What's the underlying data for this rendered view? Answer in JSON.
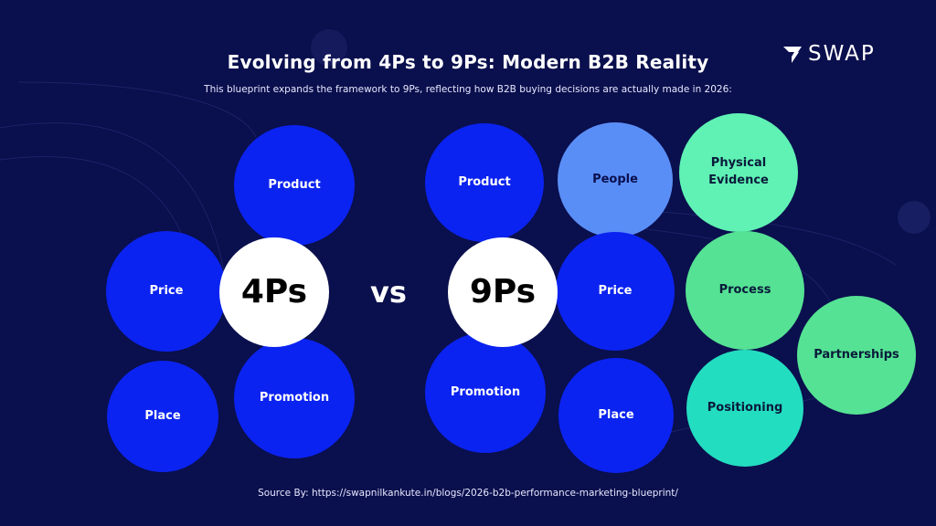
{
  "title": "Evolving from 4Ps to 9Ps: Modern B2B Reality",
  "subtitle": "This blueprint expands the framework to 9Ps, reflecting how B2B buying decisions are actually made in 2026:",
  "logo": {
    "text": "SWAP",
    "icon": "swap-logo-icon"
  },
  "four_ps": {
    "center": "4Ps",
    "items": [
      "Product",
      "Price",
      "Place",
      "Promotion"
    ]
  },
  "vs_label": "vs",
  "nine_ps": {
    "center": "9Ps",
    "items": [
      "Product",
      "People",
      "Physical Evidence",
      "Price",
      "Process",
      "Partnerships",
      "Promotion",
      "Place",
      "Positioning"
    ]
  },
  "source": "Source By: https://swapnilkankute.in/blogs/2026-b2b-performance-marketing-blueprint/",
  "colors": {
    "background": "#0a0f4d",
    "blue": "#0b23f0",
    "light_blue": "#5a8ef7",
    "mint": "#5ff2b4",
    "green": "#55e294",
    "teal": "#23ddc1",
    "white": "#ffffff"
  }
}
